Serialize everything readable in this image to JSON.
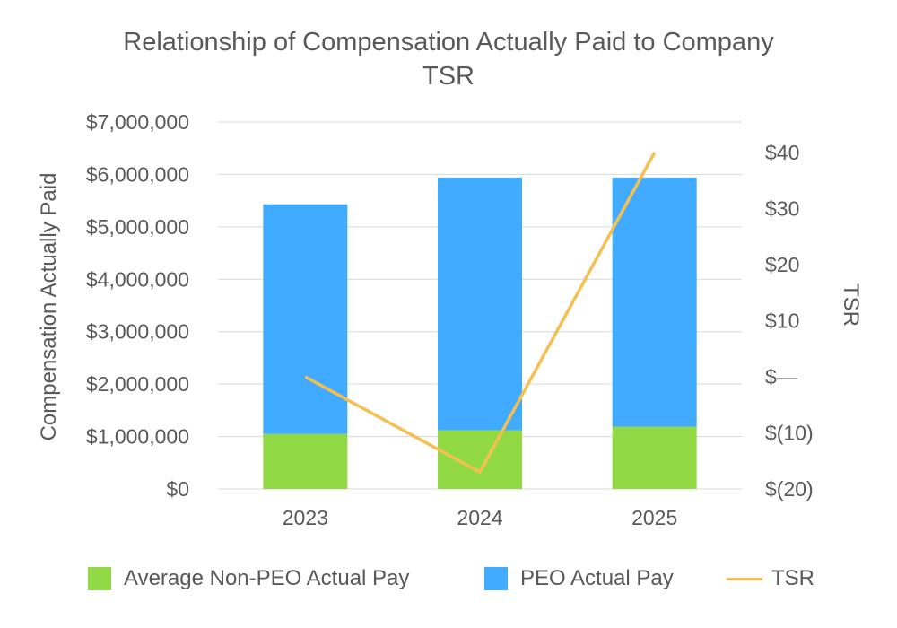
{
  "chart_data": {
    "type": "bar",
    "title_lines": [
      "Relationship of Compensation Actually Paid to Company",
      "TSR"
    ],
    "ylabel": "Compensation Actually Paid",
    "y2label": "TSR",
    "categories": [
      "2023",
      "2024",
      "2025"
    ],
    "ylim": [
      0,
      7000000
    ],
    "y_ticks": [
      0,
      1000000,
      2000000,
      3000000,
      4000000,
      5000000,
      6000000,
      7000000
    ],
    "y_tick_labels": [
      "$0",
      "$1,000,000",
      "$2,000,000",
      "$3,000,000",
      "$4,000,000",
      "$5,000,000",
      "$6,000,000",
      "$7,000,000"
    ],
    "y2lim": [
      -20,
      40
    ],
    "y2_ticks": [
      -20,
      -10,
      0,
      10,
      20,
      30,
      40
    ],
    "y2_tick_labels": [
      "$(20)",
      "$(10)",
      "$—",
      "$10",
      "$20",
      "$30",
      "$40"
    ],
    "grid": true,
    "legend_position": "bottom",
    "series": [
      {
        "name": "Average Non-PEO Actual Pay",
        "kind": "stacked-bar",
        "axis": "left",
        "color": "#92d946",
        "values": [
          1050000,
          1120000,
          1190000
        ]
      },
      {
        "name": "PEO Actual Pay",
        "kind": "stacked-bar",
        "axis": "left",
        "color": "#40abff",
        "values": [
          4380000,
          4820000,
          4750000
        ]
      },
      {
        "name": "TSR",
        "kind": "line",
        "axis": "right",
        "color": "#f6c051",
        "values": [
          0,
          -17,
          40
        ]
      }
    ]
  }
}
